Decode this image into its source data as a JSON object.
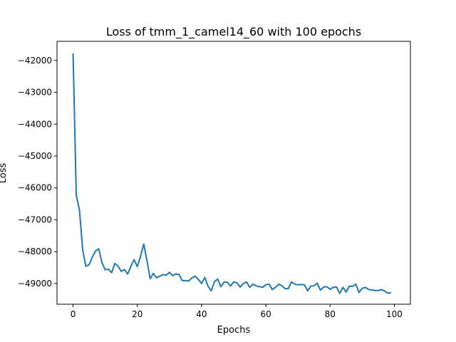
{
  "chart_data": {
    "type": "line",
    "title": "Loss of tmm_1_camel14_60 with 100 epochs",
    "xlabel": "Epochs",
    "ylabel": "Loss",
    "xlim": [
      -5,
      105
    ],
    "ylim": [
      -49650,
      -41400
    ],
    "grid": false,
    "x_ticks": [
      0,
      20,
      40,
      60,
      80,
      100
    ],
    "y_ticks": [
      -49000,
      -48000,
      -47000,
      -46000,
      -45000,
      -44000,
      -43000,
      -42000
    ],
    "x_tick_labels": [
      "0",
      "20",
      "40",
      "60",
      "80",
      "100"
    ],
    "y_tick_labels": [
      "−49000",
      "−48000",
      "−47000",
      "−46000",
      "−45000",
      "−44000",
      "−43000",
      "−42000"
    ],
    "series": [
      {
        "color": "#1f77b4",
        "x": [
          0,
          1,
          2,
          3,
          4,
          5,
          6,
          7,
          8,
          9,
          10,
          11,
          12,
          13,
          14,
          15,
          16,
          17,
          18,
          19,
          20,
          21,
          22,
          23,
          24,
          25,
          26,
          27,
          28,
          29,
          30,
          31,
          32,
          33,
          34,
          35,
          36,
          37,
          38,
          39,
          40,
          41,
          42,
          43,
          44,
          45,
          46,
          47,
          48,
          49,
          50,
          51,
          52,
          53,
          54,
          55,
          56,
          57,
          58,
          59,
          60,
          61,
          62,
          63,
          64,
          65,
          66,
          67,
          68,
          69,
          70,
          71,
          72,
          73,
          74,
          75,
          76,
          77,
          78,
          79,
          80,
          81,
          82,
          83,
          84,
          85,
          86,
          87,
          88,
          89,
          90,
          91,
          92,
          93,
          94,
          95,
          96,
          97,
          98,
          99
        ],
        "y": [
          -41780,
          -46230,
          -46700,
          -47950,
          -48460,
          -48410,
          -48170,
          -47980,
          -47910,
          -48350,
          -48570,
          -48550,
          -48660,
          -48370,
          -48450,
          -48620,
          -48560,
          -48700,
          -48460,
          -48250,
          -48470,
          -48150,
          -47760,
          -48280,
          -48850,
          -48680,
          -48820,
          -48770,
          -48720,
          -48740,
          -48650,
          -48750,
          -48700,
          -48720,
          -48910,
          -48910,
          -48920,
          -48820,
          -48770,
          -48870,
          -49000,
          -48810,
          -49080,
          -49230,
          -48940,
          -48860,
          -49100,
          -48960,
          -48960,
          -49080,
          -48950,
          -48980,
          -49110,
          -49000,
          -48950,
          -49120,
          -49020,
          -49070,
          -49100,
          -49120,
          -49040,
          -49020,
          -49190,
          -49120,
          -49020,
          -49070,
          -49160,
          -49160,
          -48950,
          -49020,
          -49040,
          -49030,
          -49040,
          -49230,
          -49080,
          -49070,
          -48990,
          -49210,
          -49110,
          -49100,
          -49180,
          -49120,
          -49110,
          -49310,
          -49120,
          -49270,
          -49080,
          -49090,
          -49020,
          -49280,
          -49150,
          -49120,
          -49190,
          -49200,
          -49220,
          -49220,
          -49190,
          -49240,
          -49300,
          -49290
        ]
      }
    ]
  }
}
